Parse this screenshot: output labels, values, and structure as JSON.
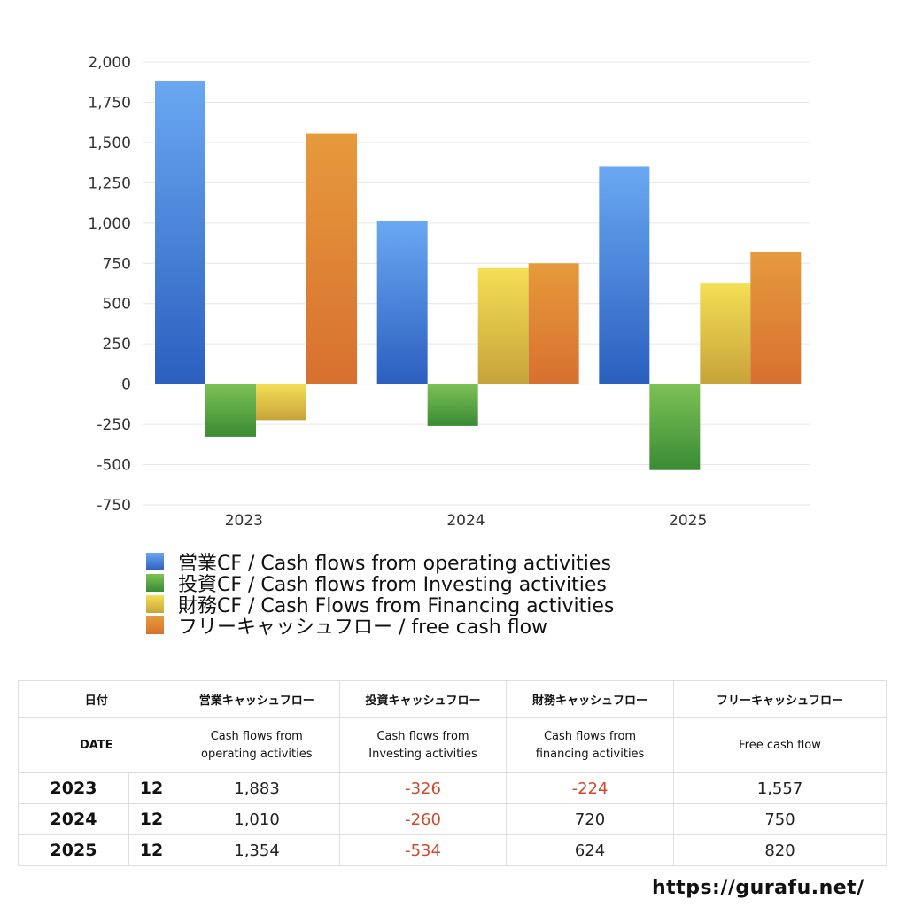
{
  "chart_data": {
    "type": "bar",
    "categories": [
      "2023",
      "2024",
      "2025"
    ],
    "series": [
      {
        "name": "営業CF / Cash flows from operating activities",
        "values": [
          1883,
          1010,
          1354
        ],
        "color_top": "#6aa8f2",
        "color_bottom": "#2b5fbf"
      },
      {
        "name": "投資CF / Cash flows from Investing activities",
        "values": [
          -326,
          -260,
          -534
        ],
        "color_top": "#7dc156",
        "color_bottom": "#3a8b34"
      },
      {
        "name": "財務CF / Cash Flows from Financing activities",
        "values": [
          -224,
          720,
          624
        ],
        "color_top": "#f3df55",
        "color_bottom": "#c7a33a"
      },
      {
        "name": "フリーキャッシュフロー / free cash flow",
        "values": [
          1557,
          750,
          820
        ],
        "color_top": "#e69a3c",
        "color_bottom": "#d8702f"
      }
    ],
    "ylim": [
      -750,
      2000
    ],
    "yticks": [
      2000,
      1750,
      1500,
      1250,
      1000,
      750,
      500,
      250,
      0,
      -250,
      -500,
      -750
    ],
    "ytick_labels": [
      "2,000",
      "1,750",
      "1,500",
      "1,250",
      "1,000",
      "750",
      "500",
      "250",
      "0",
      "-250",
      "-500",
      "-750"
    ],
    "grid": true,
    "legend_position": "bottom"
  },
  "table": {
    "header_ja": {
      "date": "日付",
      "operating": "営業キャッシュフロー",
      "investing": "投資キャッシュフロー",
      "financing": "財務キャッシュフロー",
      "free": "フリーキャッシュフロー"
    },
    "header_en": {
      "date": "DATE",
      "operating_1": "Cash flows from",
      "operating_2": "operating activities",
      "investing_1": "Cash flows from",
      "investing_2": "Investing activities",
      "financing_1": "Cash flows from",
      "financing_2": "financing activities",
      "free": "Free cash flow"
    },
    "rows": [
      {
        "year": "2023",
        "month": "12",
        "operating": "1,883",
        "investing": "-326",
        "financing": "-224",
        "free": "1,557"
      },
      {
        "year": "2024",
        "month": "12",
        "operating": "1,010",
        "investing": "-260",
        "financing": "720",
        "free": "750"
      },
      {
        "year": "2025",
        "month": "12",
        "operating": "1,354",
        "investing": "-534",
        "financing": "624",
        "free": "820"
      }
    ]
  },
  "site_url": "https://gurafu.net/",
  "colors": {
    "negative_text": "#cf4a2c",
    "grid": "#e6e6e6"
  }
}
